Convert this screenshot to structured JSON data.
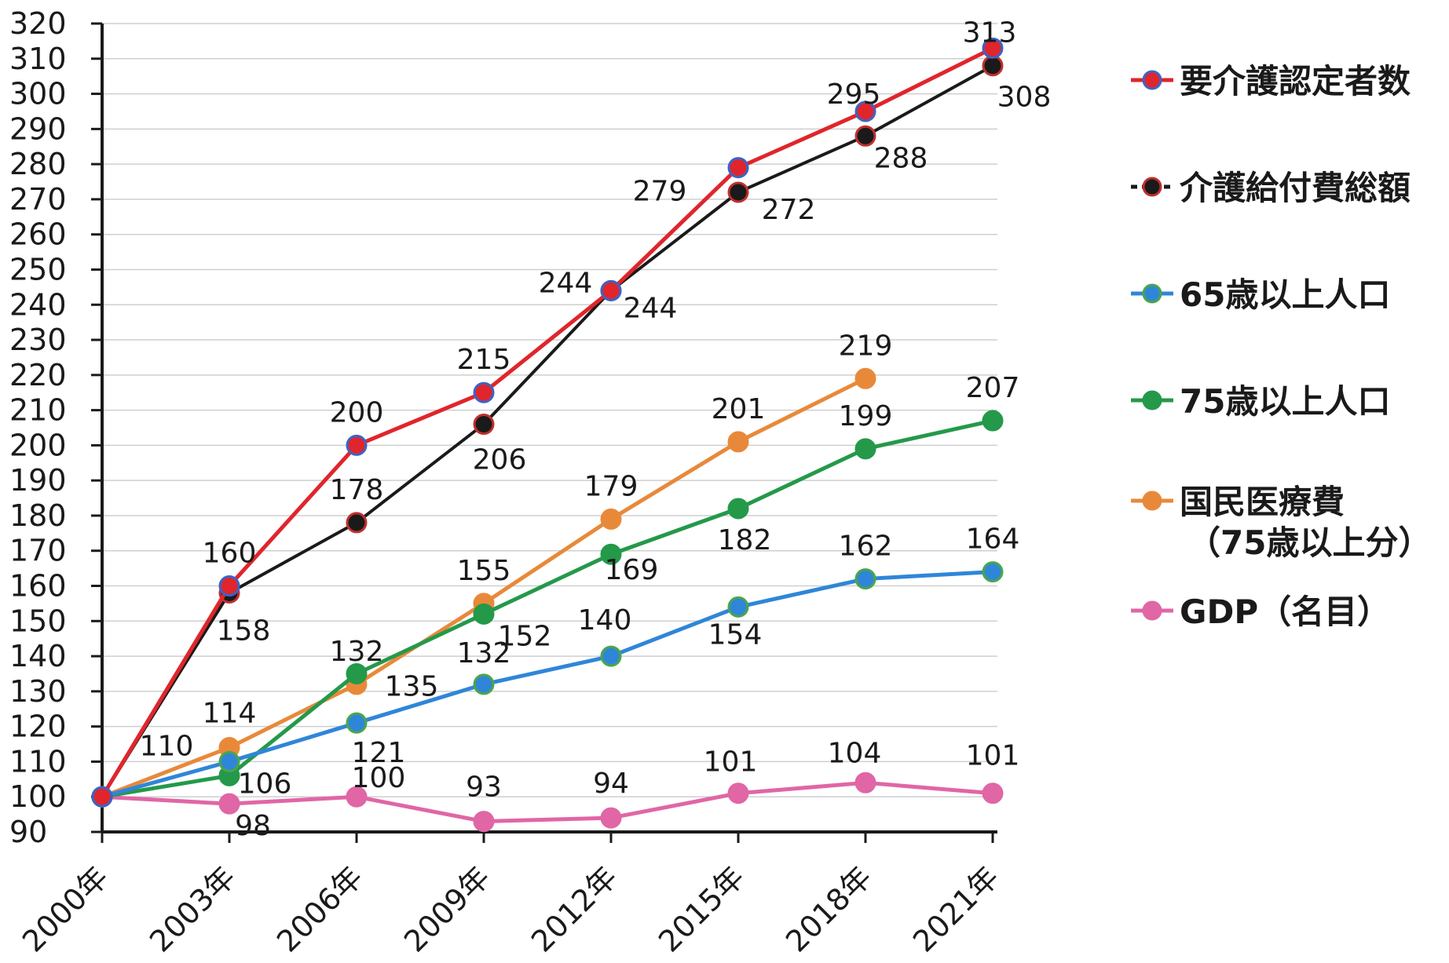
{
  "chart_data": {
    "type": "line",
    "title": "",
    "xlabel": "",
    "ylabel": "",
    "categories": [
      "2000年",
      "2003年",
      "2006年",
      "2009年",
      "2012年",
      "2015年",
      "2018年",
      "2021年"
    ],
    "ylim": [
      90,
      320
    ],
    "yticks": [
      90,
      100,
      110,
      120,
      130,
      140,
      150,
      160,
      170,
      180,
      190,
      200,
      210,
      220,
      230,
      240,
      250,
      260,
      270,
      280,
      290,
      300,
      310,
      320
    ],
    "grid": true,
    "legend_position": "right",
    "series": [
      {
        "key": "certified",
        "name": "要介護認定者数",
        "color": "#e0252c",
        "marker_edge": "#3a64c8",
        "values": [
          100,
          160,
          200,
          215,
          244,
          279,
          295,
          313
        ]
      },
      {
        "key": "benefit",
        "name": "介護給付費総額",
        "color": "#1a1a1a",
        "marker_edge": "#c0302f",
        "values": [
          100,
          158,
          178,
          206,
          244,
          272,
          288,
          308
        ]
      },
      {
        "key": "pop65",
        "name": "65歳以上人口",
        "color": "#2f86d8",
        "marker_edge": "#4aa64a",
        "values": [
          100,
          110,
          121,
          132,
          140,
          154,
          162,
          164
        ]
      },
      {
        "key": "pop75",
        "name": "75歳以上人口",
        "color": "#24994a",
        "marker_edge": "#24994a",
        "values": [
          100,
          106,
          135,
          152,
          169,
          182,
          199,
          207
        ]
      },
      {
        "key": "medical",
        "name": "国民医療費\n（75歳以上分）",
        "color": "#e8893a",
        "marker_edge": "#e8893a",
        "values": [
          100,
          114,
          132,
          155,
          179,
          201,
          219,
          null
        ]
      },
      {
        "key": "gdp",
        "name": "GDP（名目）",
        "color": "#e066a6",
        "marker_edge": "#e066a6",
        "values": [
          100,
          98,
          100,
          93,
          94,
          101,
          104,
          101
        ]
      }
    ],
    "data_labels": [
      {
        "series": "certified",
        "index": 1,
        "text": "160"
      },
      {
        "series": "certified",
        "index": 2,
        "text": "200"
      },
      {
        "series": "certified",
        "index": 3,
        "text": "215"
      },
      {
        "series": "certified",
        "index": 4,
        "text": "244"
      },
      {
        "series": "certified",
        "index": 5,
        "text": "279"
      },
      {
        "series": "certified",
        "index": 6,
        "text": "295"
      },
      {
        "series": "certified",
        "index": 7,
        "text": "313"
      },
      {
        "series": "benefit",
        "index": 1,
        "text": "158"
      },
      {
        "series": "benefit",
        "index": 2,
        "text": "178"
      },
      {
        "series": "benefit",
        "index": 3,
        "text": "206"
      },
      {
        "series": "benefit",
        "index": 4,
        "text": "244"
      },
      {
        "series": "benefit",
        "index": 5,
        "text": "272"
      },
      {
        "series": "benefit",
        "index": 6,
        "text": "288"
      },
      {
        "series": "benefit",
        "index": 7,
        "text": "308"
      },
      {
        "series": "pop65",
        "index": 1,
        "text": "110"
      },
      {
        "series": "pop65",
        "index": 2,
        "text": "121"
      },
      {
        "series": "pop65",
        "index": 3,
        "text": "132"
      },
      {
        "series": "pop65",
        "index": 4,
        "text": "140"
      },
      {
        "series": "pop65",
        "index": 5,
        "text": "154"
      },
      {
        "series": "pop65",
        "index": 6,
        "text": "162"
      },
      {
        "series": "pop65",
        "index": 7,
        "text": "164"
      },
      {
        "series": "pop75",
        "index": 1,
        "text": "106"
      },
      {
        "series": "pop75",
        "index": 2,
        "text": "135"
      },
      {
        "series": "pop75",
        "index": 3,
        "text": "152"
      },
      {
        "series": "pop75",
        "index": 4,
        "text": "169"
      },
      {
        "series": "pop75",
        "index": 5,
        "text": "182"
      },
      {
        "series": "pop75",
        "index": 6,
        "text": "199"
      },
      {
        "series": "pop75",
        "index": 7,
        "text": "207"
      },
      {
        "series": "medical",
        "index": 1,
        "text": "114"
      },
      {
        "series": "medical",
        "index": 2,
        "text": "132"
      },
      {
        "series": "medical",
        "index": 3,
        "text": "155"
      },
      {
        "series": "medical",
        "index": 4,
        "text": "179"
      },
      {
        "series": "medical",
        "index": 5,
        "text": "201"
      },
      {
        "series": "medical",
        "index": 6,
        "text": "219"
      },
      {
        "series": "gdp",
        "index": 1,
        "text": "98"
      },
      {
        "series": "gdp",
        "index": 2,
        "text": "100"
      },
      {
        "series": "gdp",
        "index": 3,
        "text": "93"
      },
      {
        "series": "gdp",
        "index": 4,
        "text": "94"
      },
      {
        "series": "gdp",
        "index": 5,
        "text": "101"
      },
      {
        "series": "gdp",
        "index": 6,
        "text": "104"
      },
      {
        "series": "gdp",
        "index": 7,
        "text": "101"
      }
    ]
  }
}
